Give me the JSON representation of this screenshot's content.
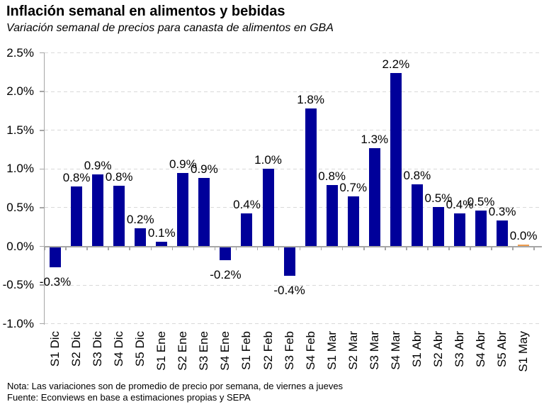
{
  "header": {
    "title": "Inflación semanal en alimentos y bebidas",
    "subtitle": "Variación semanal de precios para canasta de alimentos en GBA"
  },
  "footer": {
    "note": "Nota: Las variaciones son de promedio de precio por semana, de viernes a jueves",
    "source": "Fuente: Econviews en base a estimaciones propias y SEPA"
  },
  "colors": {
    "bar_navy": "#00009A",
    "bar_highlight_orange": "#ED9B4D",
    "gridline_gray": "#D9D9D9",
    "axis_gray": "#A6A6A6",
    "text_black": "#000000"
  },
  "chart_data": {
    "type": "bar",
    "title": "Inflación semanal en alimentos y bebidas",
    "subtitle": "Variación semanal de precios para canasta de alimentos en GBA",
    "xlabel": "",
    "ylabel": "",
    "ylim": [
      -1.0,
      2.5
    ],
    "grid": "horizontal-dashed",
    "legend": "none",
    "categories": [
      "S1 Dic",
      "S2 Dic",
      "S3 Dic",
      "S4 Dic",
      "S5 Dic",
      "S1 Ene",
      "S2 Ene",
      "S3 Ene",
      "S4 Ene",
      "S1 Feb",
      "S2 Feb",
      "S3 Feb",
      "S4 Feb",
      "S1 Mar",
      "S2 Mar",
      "S3 Mar",
      "S4 Mar",
      "S1 Abr",
      "S2 Abr",
      "S3 Abr",
      "S4 Abr",
      "S5 Abr",
      "S1 May"
    ],
    "values": [
      -0.3,
      0.8,
      0.9,
      0.8,
      0.2,
      0.1,
      0.9,
      0.9,
      -0.2,
      0.4,
      1.0,
      -0.4,
      1.8,
      0.8,
      0.7,
      1.3,
      2.2,
      0.8,
      0.5,
      0.4,
      0.5,
      0.3,
      0.0
    ],
    "data_labels": [
      "-0.3%",
      "0.8%",
      "0.9%",
      "0.8%",
      "0.2%",
      "0.1%",
      "0.9%",
      "0.9%",
      "-0.2%",
      "0.4%",
      "1.0%",
      "-0.4%",
      "1.8%",
      "0.8%",
      "0.7%",
      "1.3%",
      "2.2%",
      "0.8%",
      "0.5%",
      "0.4%",
      "0.5%",
      "0.3%",
      "0.0%"
    ],
    "plot_values": [
      -0.27,
      0.77,
      0.93,
      0.78,
      0.23,
      0.06,
      0.95,
      0.88,
      -0.18,
      0.43,
      1.0,
      -0.38,
      1.78,
      0.79,
      0.65,
      1.27,
      2.24,
      0.8,
      0.51,
      0.43,
      0.46,
      0.33,
      0.025
    ],
    "y_tick_labels": [
      "2.5%",
      "2.0%",
      "1.5%",
      "1.0%",
      "0.5%",
      "0.0%",
      "-0.5%",
      "-1.0%"
    ],
    "y_tick_values": [
      2.5,
      2.0,
      1.5,
      1.0,
      0.5,
      0.0,
      -0.5,
      -1.0
    ],
    "bar_color": "#00009A",
    "highlight": {
      "index": 22,
      "color": "#ED9B4D"
    }
  }
}
